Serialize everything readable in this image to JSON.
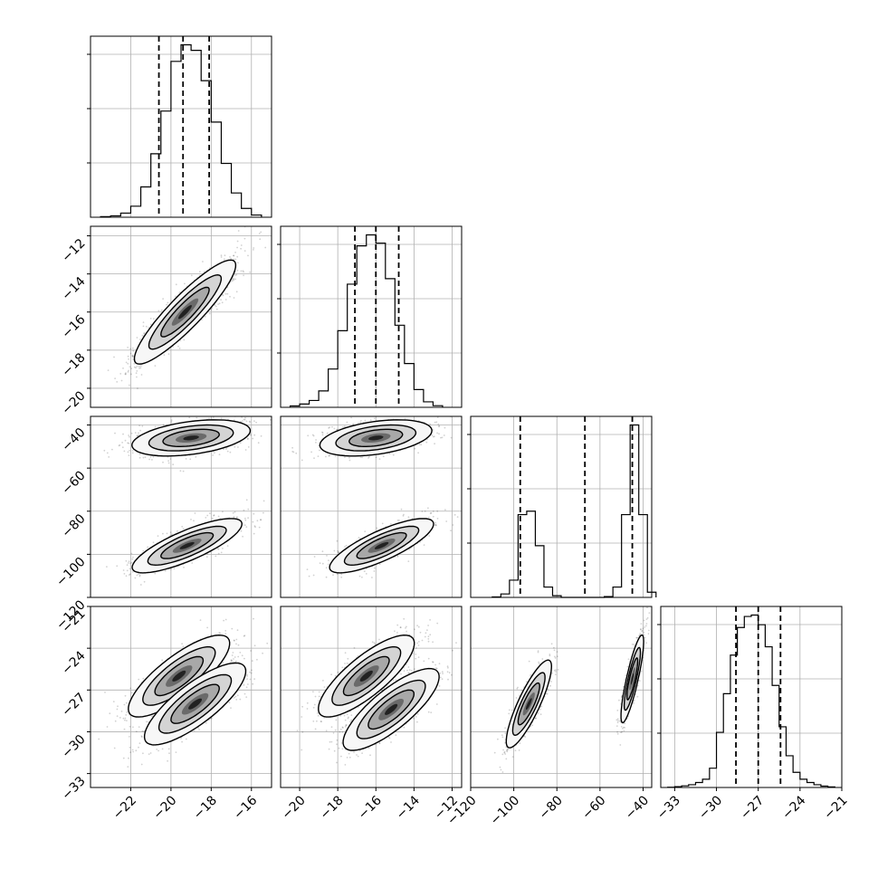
{
  "chart_data": {
    "type": "scatter",
    "subtype": "corner-plot",
    "title": "",
    "grid": true,
    "parameters": [
      {
        "ticks": [
          -22,
          -20,
          -18,
          -16
        ],
        "tick_labels": [
          "−22",
          "−20",
          "−18",
          "−16"
        ],
        "range": [
          -24,
          -15
        ]
      },
      {
        "ticks": [
          -20,
          -18,
          -16,
          -14,
          -12
        ],
        "tick_labels": [
          "−20",
          "−18",
          "−16",
          "−14",
          "−12"
        ],
        "range": [
          -21,
          -11.5
        ]
      },
      {
        "ticks": [
          -120,
          -100,
          -80,
          -60,
          -40
        ],
        "tick_labels": [
          "−120",
          "−100",
          "−80",
          "−60",
          "−40"
        ],
        "range": [
          -120,
          -36
        ]
      },
      {
        "ticks": [
          -33,
          -30,
          -27,
          -24,
          -21
        ],
        "tick_labels": [
          "−33",
          "−30",
          "−27",
          "−24",
          "−21"
        ],
        "range": [
          -34,
          -21
        ]
      }
    ],
    "histograms": [
      {
        "param": 0,
        "quantile_lines": [
          -20.6,
          -19.4,
          -18.1
        ],
        "bins": [
          -23.5,
          -23.0,
          -22.5,
          -22.0,
          -21.5,
          -21.0,
          -20.5,
          -20.0,
          -19.5,
          -19.0,
          -18.5,
          -18.0,
          -17.5,
          -17.0,
          -16.5,
          -16.0,
          -15.5
        ],
        "counts": [
          2,
          5,
          15,
          40,
          110,
          230,
          385,
          565,
          625,
          605,
          495,
          345,
          195,
          88,
          32,
          8
        ]
      },
      {
        "param": 1,
        "quantile_lines": [
          -17.1,
          -16.0,
          -14.8
        ],
        "bins": [
          -20.5,
          -20.0,
          -19.5,
          -19.0,
          -18.5,
          -18.0,
          -17.5,
          -17.0,
          -16.5,
          -16.0,
          -15.5,
          -15.0,
          -14.5,
          -14.0,
          -13.5,
          -13.0,
          -12.5
        ],
        "counts": [
          5,
          12,
          25,
          60,
          140,
          280,
          450,
          590,
          630,
          600,
          470,
          300,
          160,
          65,
          20,
          6
        ]
      },
      {
        "param": 2,
        "quantile_lines": [
          -97,
          -67,
          -45
        ],
        "bins": [
          -110,
          -106,
          -102,
          -98,
          -94,
          -90,
          -86,
          -82,
          -78,
          -74,
          -70,
          -66,
          -62,
          -58,
          -54,
          -50,
          -46,
          -42,
          -38,
          -34
        ],
        "counts": [
          3,
          20,
          100,
          480,
          500,
          300,
          60,
          10,
          0,
          0,
          0,
          0,
          0,
          5,
          60,
          480,
          1000,
          480,
          30
        ]
      },
      {
        "param": 3,
        "quantile_lines": [
          -28.6,
          -27.0,
          -25.4
        ],
        "bins": [
          -33.5,
          -33.0,
          -32.5,
          -32.0,
          -31.5,
          -31.0,
          -30.5,
          -30.0,
          -29.5,
          -29.0,
          -28.5,
          -28.0,
          -27.5,
          -27.0,
          -26.5,
          -26.0,
          -25.5,
          -25.0,
          -24.5,
          -24.0,
          -23.5,
          -23.0,
          -22.5,
          -22.0,
          -21.5
        ],
        "counts": [
          1,
          3,
          6,
          10,
          18,
          30,
          70,
          200,
          340,
          480,
          580,
          620,
          625,
          590,
          510,
          370,
          220,
          115,
          55,
          30,
          18,
          10,
          5,
          2
        ]
      }
    ],
    "scatter_panels": [
      {
        "x": 0,
        "y": 1,
        "correlation": 0.9,
        "center": [
          -19.3,
          -16.0
        ],
        "sd": [
          1.2,
          1.3
        ]
      },
      {
        "x": 0,
        "y": 2,
        "modes": [
          {
            "center": [
              -19.0,
              -46
            ],
            "sd": [
              1.4,
              4
            ],
            "corr": 0.4
          },
          {
            "center": [
              -19.2,
              -96
            ],
            "sd": [
              1.3,
              6
            ],
            "corr": 0.8
          }
        ]
      },
      {
        "x": 1,
        "y": 2,
        "modes": [
          {
            "center": [
              -16.0,
              -46
            ],
            "sd": [
              1.4,
              4
            ],
            "corr": 0.4
          },
          {
            "center": [
              -15.7,
              -96
            ],
            "sd": [
              1.3,
              6
            ],
            "corr": 0.8
          }
        ]
      },
      {
        "x": 0,
        "y": 3,
        "modes": [
          {
            "center": [
              -19.6,
              -26.0
            ],
            "sd": [
              1.2,
              1.4
            ],
            "corr": 0.8
          },
          {
            "center": [
              -18.8,
              -28.0
            ],
            "sd": [
              1.2,
              1.4
            ],
            "corr": 0.8
          }
        ]
      },
      {
        "x": 1,
        "y": 3,
        "modes": [
          {
            "center": [
              -16.5,
              -26.0
            ],
            "sd": [
              1.2,
              1.4
            ],
            "corr": 0.8
          },
          {
            "center": [
              -15.2,
              -28.4
            ],
            "sd": [
              1.2,
              1.4
            ],
            "corr": 0.8
          }
        ]
      },
      {
        "x": 2,
        "y": 3,
        "modes": [
          {
            "center": [
              -93,
              -28.0
            ],
            "sd": [
              5,
              1.5
            ],
            "corr": 0.85
          },
          {
            "center": [
              -45,
              -26.2
            ],
            "sd": [
              2.5,
              1.5
            ],
            "corr": 0.85
          }
        ]
      }
    ]
  }
}
